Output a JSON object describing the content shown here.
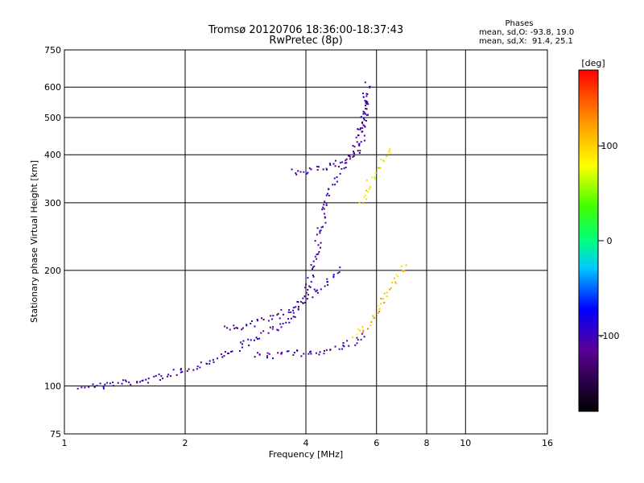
{
  "chart_data": {
    "type": "scatter",
    "title": "Tromsø 20120706 18:36:00-18:37:43",
    "subtitle": "RwPretec (8p)",
    "xlabel": "Frequency [MHz]",
    "ylabel": "Stationary phase Virtual Height [km]",
    "x_scale": "log",
    "y_scale": "log",
    "xlim": [
      1,
      16
    ],
    "ylim": [
      75,
      750
    ],
    "x_ticks": [
      1,
      2,
      4,
      6,
      8,
      10,
      16
    ],
    "x_tick_labels": [
      "1",
      "2",
      "4",
      "6",
      "8",
      "10",
      "16"
    ],
    "x_grid": [
      2,
      4,
      6,
      8,
      10
    ],
    "y_ticks": [
      75,
      100,
      200,
      300,
      400,
      500,
      600,
      750
    ],
    "y_tick_labels": [
      "75",
      "100",
      "200",
      "300",
      "400",
      "500",
      "600",
      "750"
    ],
    "y_grid": [
      100,
      200,
      300,
      400,
      500,
      600
    ],
    "grid": true,
    "stats": {
      "heading": "Phases",
      "line_o": "mean, sd,O: -93.8, 19.0",
      "line_x": "mean, sd,X:  91.4, 25.1"
    },
    "colorbar": {
      "label": "[deg]",
      "range": [
        -180,
        180
      ],
      "ticks": [
        100,
        0,
        -100
      ],
      "tick_labels": [
        "100",
        "0",
        "-100"
      ]
    },
    "traces": [
      {
        "phase": -110,
        "x": [
          1.1,
          1.25,
          1.4,
          1.6,
          1.8,
          2.0,
          2.2,
          2.5,
          2.8,
          3.1,
          3.4,
          3.7,
          3.9,
          4.1,
          4.3,
          4.6,
          5.0,
          5.4,
          5.7
        ],
        "y": [
          100,
          100,
          102,
          103,
          107,
          110,
          114,
          120,
          128,
          135,
          142,
          152,
          165,
          190,
          240,
          330,
          380,
          430,
          620
        ]
      },
      {
        "phase": -110,
        "x": [
          3.7,
          3.9,
          4.1,
          4.4,
          4.7,
          5.0,
          5.3,
          5.5,
          5.7
        ],
        "y": [
          360,
          360,
          365,
          370,
          378,
          390,
          400,
          420,
          600
        ]
      },
      {
        "phase": -110,
        "x": [
          3.0,
          3.3,
          3.6,
          4.0,
          4.4,
          4.8,
          5.1,
          5.4,
          5.7
        ],
        "y": [
          120,
          120,
          121,
          122,
          123,
          125,
          128,
          132,
          135
        ]
      },
      {
        "phase": -110,
        "x": [
          2.5,
          2.8,
          3.1,
          3.4,
          3.7,
          4.0,
          4.3,
          4.6,
          4.9
        ],
        "y": [
          140,
          143,
          148,
          152,
          160,
          168,
          178,
          190,
          205
        ]
      },
      {
        "phase": 110,
        "x": [
          5.3,
          5.6,
          5.9,
          6.2,
          6.5,
          6.8,
          7.1
        ],
        "y": [
          135,
          140,
          150,
          165,
          180,
          195,
          210
        ]
      },
      {
        "phase": 90,
        "x": [
          5.5,
          5.7,
          6.0,
          6.3,
          6.6
        ],
        "y": [
          300,
          330,
          360,
          400,
          420
        ]
      }
    ]
  }
}
